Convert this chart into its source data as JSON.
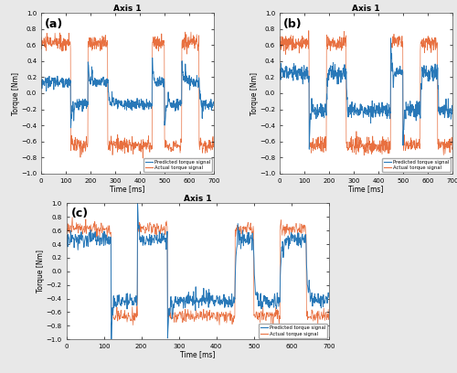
{
  "title": "Axis 1",
  "xlabel": "Time [ms]",
  "ylabel": "Torque [Nm]",
  "xlim": [
    0,
    700
  ],
  "ylim": [
    -1,
    1
  ],
  "yticks": [
    -1,
    -0.8,
    -0.6,
    -0.4,
    -0.2,
    0,
    0.2,
    0.4,
    0.6,
    0.8,
    1
  ],
  "xticks": [
    0,
    100,
    200,
    300,
    400,
    500,
    600,
    700
  ],
  "blue_color": "#2878b8",
  "orange_color": "#e87040",
  "legend_labels": [
    "Predicted torque signal",
    "Actual torque signal"
  ],
  "panel_labels": [
    "(a)",
    "(b)",
    "(c)"
  ],
  "transition_times": [
    120,
    190,
    270,
    450,
    500,
    570,
    640
  ],
  "actual_high": 0.63,
  "actual_low": -0.65,
  "predicted_a_high": 0.14,
  "predicted_a_low": -0.14,
  "predicted_b_high": 0.26,
  "predicted_b_low": -0.22,
  "predicted_c_high": 0.47,
  "predicted_c_low": -0.43,
  "noise_actual": 0.05,
  "noise_pred_a": 0.035,
  "noise_pred_b": 0.05,
  "noise_pred_c": 0.055,
  "figure_bg": "#e8e8e8",
  "axes_bg": "#ffffff"
}
